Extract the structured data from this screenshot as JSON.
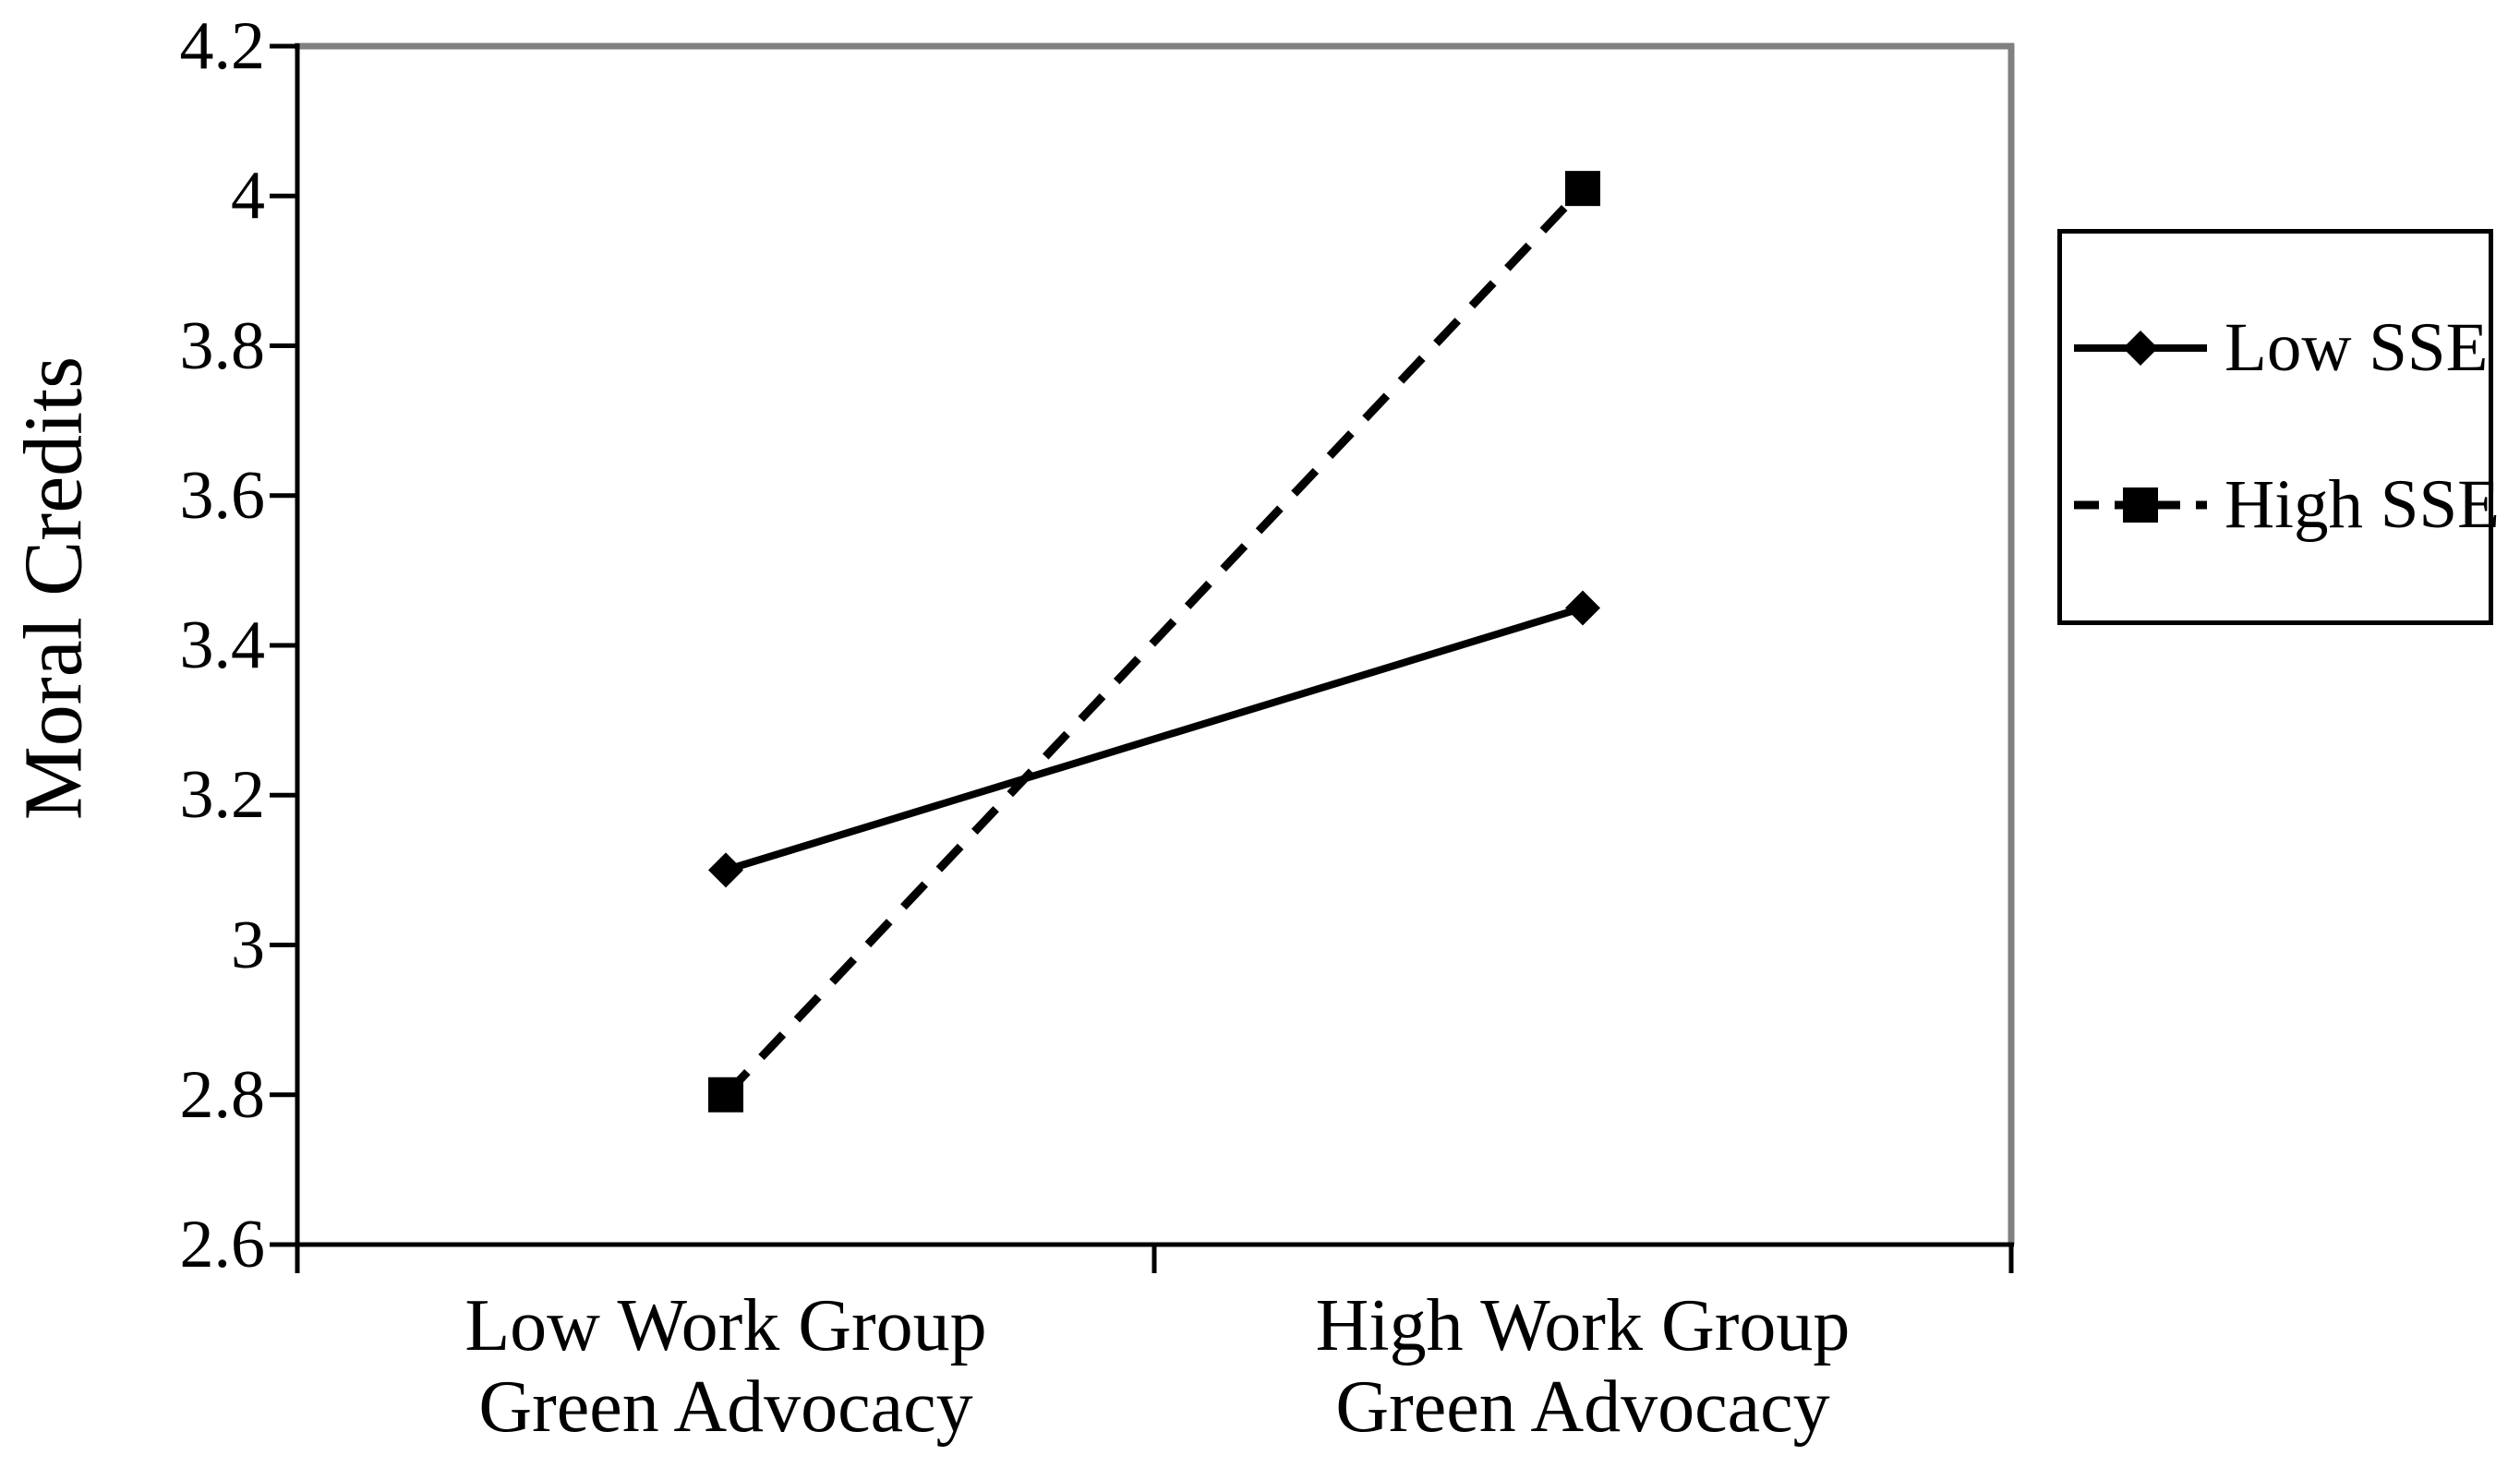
{
  "figure": {
    "background": "#ffffff"
  },
  "chart_data": {
    "type": "line",
    "title": "",
    "xlabel": "",
    "ylabel": "Moral Credits",
    "ylim": [
      2.6,
      4.2
    ],
    "yticks": [
      2.6,
      2.8,
      3.0,
      3.2,
      3.4,
      3.6,
      3.8,
      4.0,
      4.2
    ],
    "ytick_labels": [
      "2.6",
      "2.8",
      "3",
      "3.2",
      "3.4",
      "3.6",
      "3.8",
      "4",
      "4.2"
    ],
    "categories": [
      "Low Work Group\nGreen Advocacy",
      "High Work Group\nGreen Advocacy"
    ],
    "series": [
      {
        "name": "Low SSE",
        "values": [
          3.1,
          3.45
        ],
        "line_style": "solid",
        "marker": "diamond",
        "color": "#000000"
      },
      {
        "name": "High SSE",
        "values": [
          2.8,
          4.01
        ],
        "line_style": "dashed",
        "marker": "square",
        "color": "#000000"
      }
    ],
    "grid": false,
    "legend_position": "right",
    "axis_color": "#000000",
    "plot_border_color": "#808080"
  }
}
